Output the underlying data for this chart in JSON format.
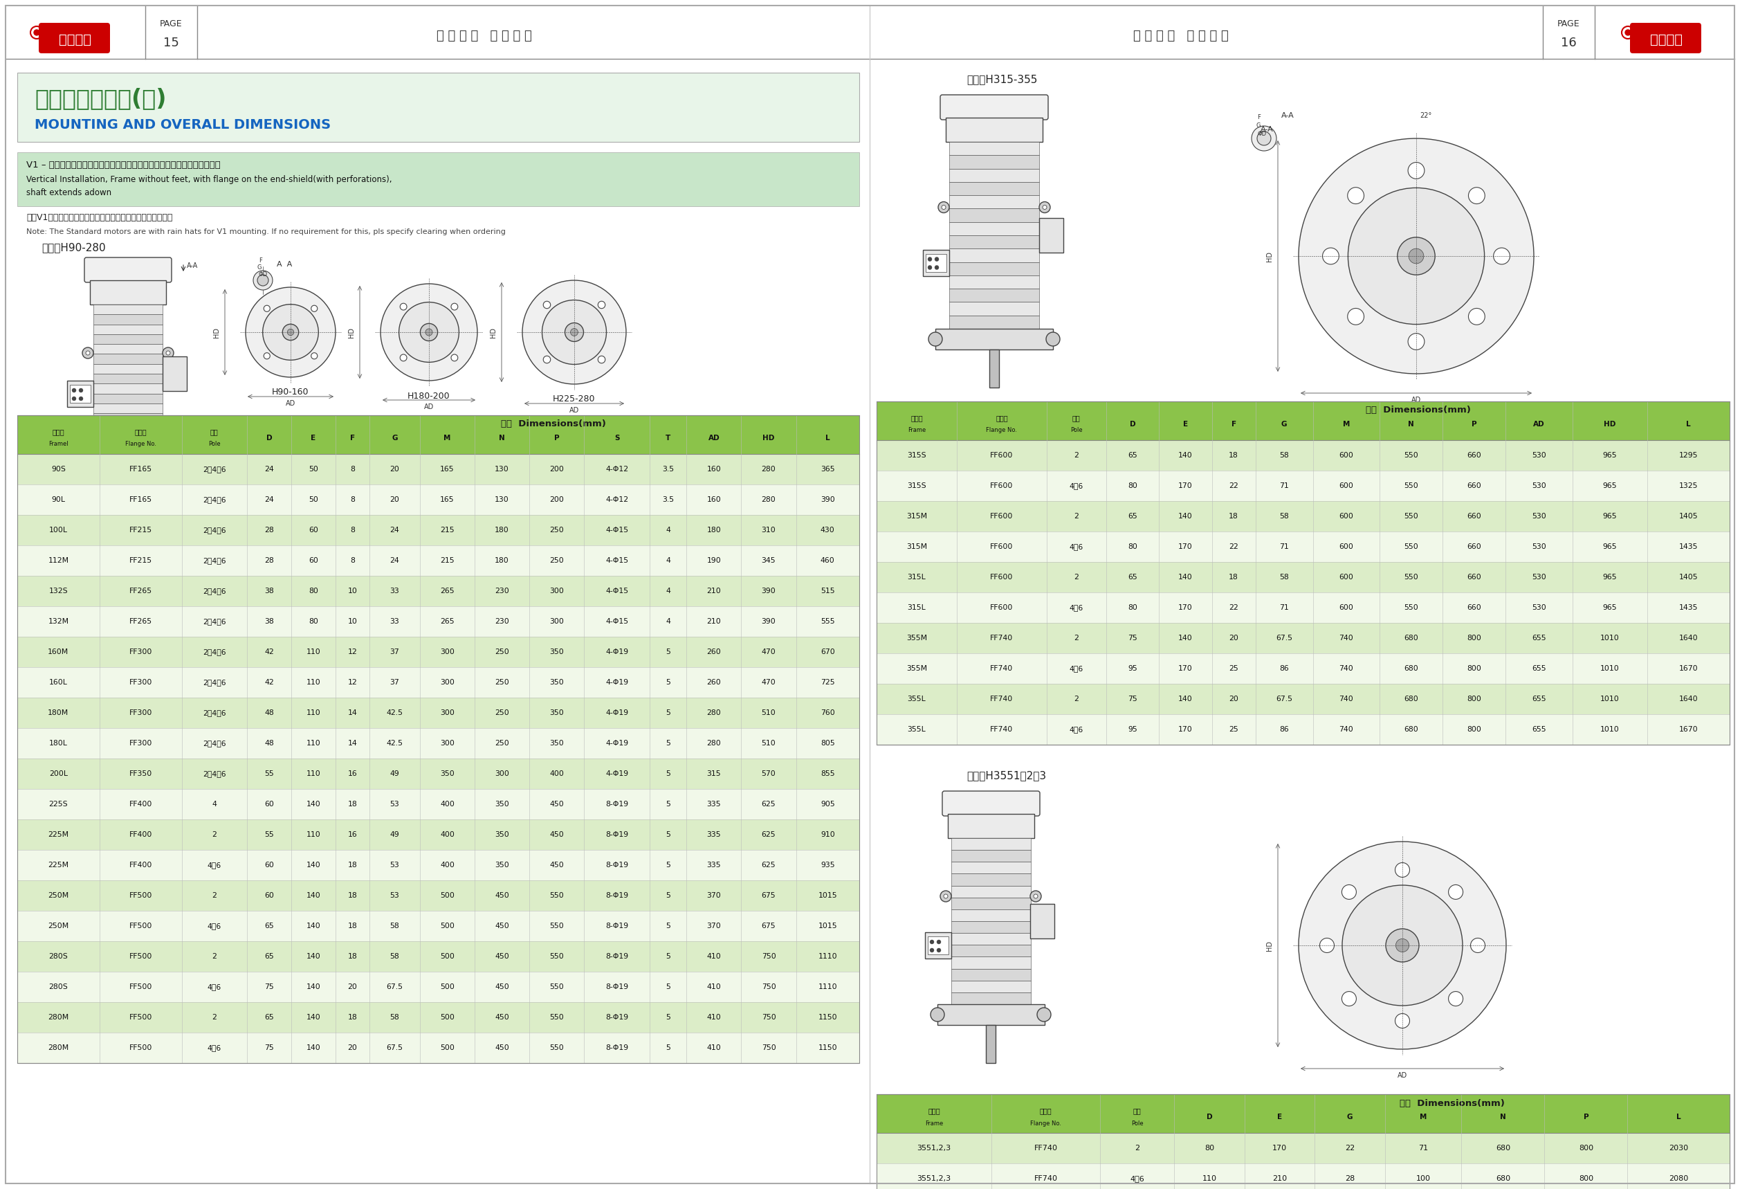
{
  "page_bg": "#ffffff",
  "page_left": "15",
  "page_right": "16",
  "header_text_left": "东 莞 电 机   志 在 环 球",
  "header_text_right": "东 莞 电 机   志 在 环 球",
  "title_box_bg": "#e8f5e9",
  "title_zh": "安装及外形尺寸(续)",
  "title_en": "MOUNTING AND OVERALL DIMENSIONS",
  "title_zh_color": "#2e7d32",
  "title_en_color": "#1565c0",
  "section_label_left": "中心高H90-280",
  "section_label_right1": "中心高H315-355",
  "section_label_right2": "中心高H3551，2，3",
  "note_v1_zh": "V1 – 立式安装，机座不带地脚，端盖有凸缘（带通孔），轴伸向下的电动机",
  "note_v1_en1": "Vertical Installation, Frame without feet, with flange on the end-shield(with perforations),",
  "note_v1_en2": "shaft extends adown",
  "note_v1_bg": "#c8e6c9",
  "note2_zh": "注：V1安装标配电机带防雨帽，如免防雨帽请在定货时注明。",
  "note2_en": "Note: The Standard motors are with rain hats for V1 mounting. If no requirement for this, pls specify clearing when ordering",
  "diagram_labels_left": [
    "H90-160",
    "H180-200",
    "H225-280"
  ],
  "table1_header_bg": "#8bc34a",
  "table1_row_bg_alt": "#dcedc8",
  "table1_row_bg": "#f1f8e9",
  "table1_headers": [
    "机座号\nFramel",
    "凸缘号\nFlange No.",
    "极数\nPole",
    "D",
    "E",
    "F",
    "G",
    "M",
    "N",
    "P",
    "S",
    "T",
    "AD",
    "HD",
    "L"
  ],
  "table1_data": [
    [
      "90S",
      "FF165",
      "2、4、6",
      "24",
      "50",
      "8",
      "20",
      "165",
      "130",
      "200",
      "4-Φ12",
      "3.5",
      "160",
      "280",
      "365"
    ],
    [
      "90L",
      "FF165",
      "2、4、6",
      "24",
      "50",
      "8",
      "20",
      "165",
      "130",
      "200",
      "4-Φ12",
      "3.5",
      "160",
      "280",
      "390"
    ],
    [
      "100L",
      "FF215",
      "2、4、6",
      "28",
      "60",
      "8",
      "24",
      "215",
      "180",
      "250",
      "4-Φ15",
      "4",
      "180",
      "310",
      "430"
    ],
    [
      "112M",
      "FF215",
      "2、4、6",
      "28",
      "60",
      "8",
      "24",
      "215",
      "180",
      "250",
      "4-Φ15",
      "4",
      "190",
      "345",
      "460"
    ],
    [
      "132S",
      "FF265",
      "2、4、6",
      "38",
      "80",
      "10",
      "33",
      "265",
      "230",
      "300",
      "4-Φ15",
      "4",
      "210",
      "390",
      "515"
    ],
    [
      "132M",
      "FF265",
      "2、4、6",
      "38",
      "80",
      "10",
      "33",
      "265",
      "230",
      "300",
      "4-Φ15",
      "4",
      "210",
      "390",
      "555"
    ],
    [
      "160M",
      "FF300",
      "2、4、6",
      "42",
      "110",
      "12",
      "37",
      "300",
      "250",
      "350",
      "4-Φ19",
      "5",
      "260",
      "470",
      "670"
    ],
    [
      "160L",
      "FF300",
      "2、4、6",
      "42",
      "110",
      "12",
      "37",
      "300",
      "250",
      "350",
      "4-Φ19",
      "5",
      "260",
      "470",
      "725"
    ],
    [
      "180M",
      "FF300",
      "2、4、6",
      "48",
      "110",
      "14",
      "42.5",
      "300",
      "250",
      "350",
      "4-Φ19",
      "5",
      "280",
      "510",
      "760"
    ],
    [
      "180L",
      "FF300",
      "2、4、6",
      "48",
      "110",
      "14",
      "42.5",
      "300",
      "250",
      "350",
      "4-Φ19",
      "5",
      "280",
      "510",
      "805"
    ],
    [
      "200L",
      "FF350",
      "2、4、6",
      "55",
      "110",
      "16",
      "49",
      "350",
      "300",
      "400",
      "4-Φ19",
      "5",
      "315",
      "570",
      "855"
    ],
    [
      "225S",
      "FF400",
      "4",
      "60",
      "140",
      "18",
      "53",
      "400",
      "350",
      "450",
      "8-Φ19",
      "5",
      "335",
      "625",
      "905"
    ],
    [
      "225M",
      "FF400",
      "2",
      "55",
      "110",
      "16",
      "49",
      "400",
      "350",
      "450",
      "8-Φ19",
      "5",
      "335",
      "625",
      "910"
    ],
    [
      "225M",
      "FF400",
      "4、6",
      "60",
      "140",
      "18",
      "53",
      "400",
      "350",
      "450",
      "8-Φ19",
      "5",
      "335",
      "625",
      "935"
    ],
    [
      "250M",
      "FF500",
      "2",
      "60",
      "140",
      "18",
      "53",
      "500",
      "450",
      "550",
      "8-Φ19",
      "5",
      "370",
      "675",
      "1015"
    ],
    [
      "250M",
      "FF500",
      "4、6",
      "65",
      "140",
      "18",
      "58",
      "500",
      "450",
      "550",
      "8-Φ19",
      "5",
      "370",
      "675",
      "1015"
    ],
    [
      "280S",
      "FF500",
      "2",
      "65",
      "140",
      "18",
      "58",
      "500",
      "450",
      "550",
      "8-Φ19",
      "5",
      "410",
      "750",
      "1110"
    ],
    [
      "280S",
      "FF500",
      "4、6",
      "75",
      "140",
      "20",
      "67.5",
      "500",
      "450",
      "550",
      "8-Φ19",
      "5",
      "410",
      "750",
      "1110"
    ],
    [
      "280M",
      "FF500",
      "2",
      "65",
      "140",
      "18",
      "58",
      "500",
      "450",
      "550",
      "8-Φ19",
      "5",
      "410",
      "750",
      "1150"
    ],
    [
      "280M",
      "FF500",
      "4、6",
      "75",
      "140",
      "20",
      "67.5",
      "500",
      "450",
      "550",
      "8-Φ19",
      "5",
      "410",
      "750",
      "1150"
    ]
  ],
  "table2_headers": [
    "机座号\nFrame",
    "凸缘号\nFlange No.",
    "极数\nPole",
    "D",
    "E",
    "F",
    "G",
    "M",
    "N",
    "P",
    "AD",
    "HD",
    "L"
  ],
  "table2_data": [
    [
      "315S",
      "FF600",
      "2",
      "65",
      "140",
      "18",
      "58",
      "600",
      "550",
      "660",
      "530",
      "965",
      "1295"
    ],
    [
      "315S",
      "FF600",
      "4、6",
      "80",
      "170",
      "22",
      "71",
      "600",
      "550",
      "660",
      "530",
      "965",
      "1325"
    ],
    [
      "315M",
      "FF600",
      "2",
      "65",
      "140",
      "18",
      "58",
      "600",
      "550",
      "660",
      "530",
      "965",
      "1405"
    ],
    [
      "315M",
      "FF600",
      "4、6",
      "80",
      "170",
      "22",
      "71",
      "600",
      "550",
      "660",
      "530",
      "965",
      "1435"
    ],
    [
      "315L",
      "FF600",
      "2",
      "65",
      "140",
      "18",
      "58",
      "600",
      "550",
      "660",
      "530",
      "965",
      "1405"
    ],
    [
      "315L",
      "FF600",
      "4、6",
      "80",
      "170",
      "22",
      "71",
      "600",
      "550",
      "660",
      "530",
      "965",
      "1435"
    ],
    [
      "355M",
      "FF740",
      "2",
      "75",
      "140",
      "20",
      "67.5",
      "740",
      "680",
      "800",
      "655",
      "1010",
      "1640"
    ],
    [
      "355M",
      "FF740",
      "4、6",
      "95",
      "170",
      "25",
      "86",
      "740",
      "680",
      "800",
      "655",
      "1010",
      "1670"
    ],
    [
      "355L",
      "FF740",
      "2",
      "75",
      "140",
      "20",
      "67.5",
      "740",
      "680",
      "800",
      "655",
      "1010",
      "1640"
    ],
    [
      "355L",
      "FF740",
      "4、6",
      "95",
      "170",
      "25",
      "86",
      "740",
      "680",
      "800",
      "655",
      "1010",
      "1670"
    ]
  ],
  "table3_headers": [
    "机座号\nFrame",
    "凸缘号\nFlange No.",
    "极数\nPole",
    "D",
    "E",
    "G",
    "M",
    "N",
    "P",
    "L"
  ],
  "table3_data": [
    [
      "3551,2,3",
      "FF740",
      "2",
      "80",
      "170",
      "22",
      "71",
      "680",
      "800",
      "2030"
    ],
    [
      "3551,2,3",
      "FF740",
      "4、6",
      "110",
      "210",
      "28",
      "100",
      "680",
      "800",
      "2080"
    ]
  ],
  "logo_color": "#cc0000",
  "green_header": "#8bc34a",
  "green_light": "#dcedc8",
  "green_lighter": "#f1f8e9"
}
